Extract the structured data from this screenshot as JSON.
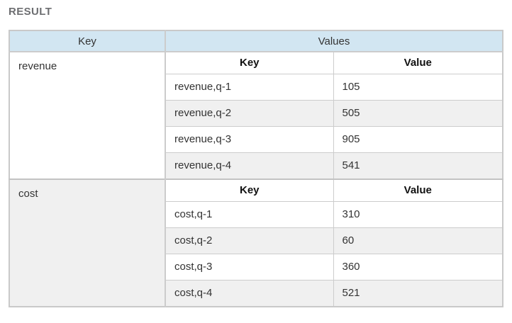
{
  "heading": "RESULT",
  "table": {
    "outer_headers": {
      "key": "Key",
      "values": "Values"
    },
    "inner_headers": {
      "key": "Key",
      "value": "Value"
    },
    "groups": [
      {
        "key": "revenue",
        "rows": [
          {
            "key": "revenue,q-1",
            "value": "105"
          },
          {
            "key": "revenue,q-2",
            "value": "505"
          },
          {
            "key": "revenue,q-3",
            "value": "905"
          },
          {
            "key": "revenue,q-4",
            "value": "541"
          }
        ]
      },
      {
        "key": "cost",
        "rows": [
          {
            "key": "cost,q-1",
            "value": "310"
          },
          {
            "key": "cost,q-2",
            "value": "60"
          },
          {
            "key": "cost,q-3",
            "value": "360"
          },
          {
            "key": "cost,q-4",
            "value": "521"
          }
        ]
      }
    ]
  },
  "colors": {
    "header_bg": "#d2e6f2",
    "alt_row_bg": "#f0f0f0",
    "border": "#cccccc",
    "heading_text": "#6d6e71",
    "body_text": "#333333"
  }
}
